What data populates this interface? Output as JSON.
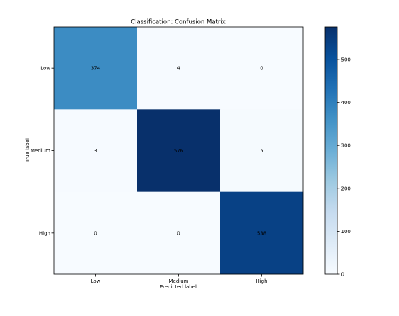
{
  "chart_data": {
    "type": "heatmap",
    "title": "Classification: Confusion Matrix",
    "xlabel": "Predicted label",
    "ylabel": "True label",
    "x_categories": [
      "Low",
      "Medium",
      "High"
    ],
    "y_categories": [
      "Low",
      "Medium",
      "High"
    ],
    "values": [
      [
        374,
        4,
        0
      ],
      [
        3,
        576,
        5
      ],
      [
        0,
        0,
        538
      ]
    ],
    "colormap": "Blues",
    "colorbar": {
      "min": 0,
      "max": 576,
      "ticks": [
        0,
        100,
        200,
        300,
        400,
        500
      ]
    },
    "colors": {
      "low": "#f7fbff",
      "high": "#08306b"
    }
  }
}
